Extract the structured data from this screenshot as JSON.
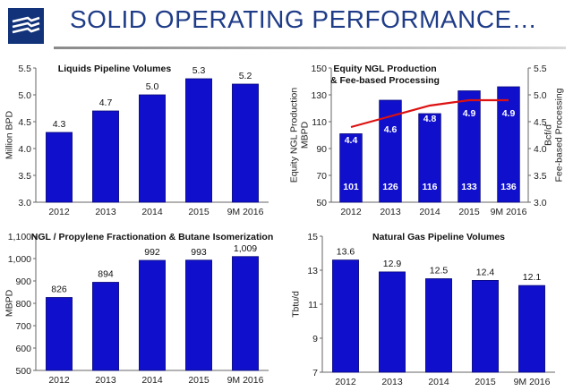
{
  "header": {
    "title": "SOLID OPERATING PERFORMANCE…"
  },
  "colors": {
    "bar": "#1010cc",
    "bar_edge": "#08087a",
    "line": "#dd1111",
    "title": "#1f3c88"
  },
  "chart_data": [
    {
      "type": "bar",
      "title": "Liquids Pipeline Volumes",
      "categories": [
        "2012",
        "2013",
        "2014",
        "2015",
        "9M 2016"
      ],
      "values": [
        4.3,
        4.7,
        5.0,
        5.3,
        5.2
      ],
      "value_labels": [
        "4.3",
        "4.7",
        "5.0",
        "5.3",
        "5.2"
      ],
      "ylabel": "Million BPD",
      "ylim": [
        3.0,
        5.5
      ],
      "yticks": [
        3.0,
        3.5,
        4.0,
        4.5,
        5.0,
        5.5
      ],
      "ytick_labels": [
        "3.0",
        "3.5",
        "4.0",
        "4.5",
        "5.0",
        "5.5"
      ]
    },
    {
      "type": "bar",
      "title": [
        "Equity NGL Production",
        "& Fee-based Processing"
      ],
      "categories": [
        "2012",
        "2013",
        "2014",
        "2015",
        "9M 2016"
      ],
      "series": [
        {
          "type": "bar",
          "values": [
            101,
            126,
            116,
            133,
            136
          ],
          "value_labels": [
            "101",
            "126",
            "116",
            "133",
            "136"
          ]
        },
        {
          "type": "line",
          "axis": "right",
          "values": [
            4.4,
            4.6,
            4.8,
            4.9,
            4.9
          ],
          "value_labels": [
            "4.4",
            "4.6",
            "4.8",
            "4.9",
            "4.9"
          ]
        }
      ],
      "ylabel": [
        "Equity NGL Production",
        "MBPD"
      ],
      "ylim": [
        50,
        150
      ],
      "yticks": [
        50,
        70,
        90,
        110,
        130,
        150
      ],
      "ytick_labels": [
        "50",
        "70",
        "90",
        "110",
        "130",
        "150"
      ],
      "y2label": [
        "Bcf/d",
        "Fee-based Processing"
      ],
      "y2lim": [
        3.0,
        5.5
      ],
      "y2ticks": [
        3.0,
        3.5,
        4.0,
        4.5,
        5.0,
        5.5
      ],
      "y2tick_labels": [
        "3.0",
        "3.5",
        "4.0",
        "4.5",
        "5.0",
        "5.5"
      ]
    },
    {
      "type": "bar",
      "title": "NGL / Propylene Fractionation & Butane Isomerization",
      "categories": [
        "2012",
        "2013",
        "2014",
        "2015",
        "9M 2016"
      ],
      "values": [
        826,
        894,
        992,
        993,
        1009
      ],
      "value_labels": [
        "826",
        "894",
        "992",
        "993",
        "1,009"
      ],
      "ylabel": "MBPD",
      "ylim": [
        500,
        1100
      ],
      "yticks": [
        500,
        600,
        700,
        800,
        900,
        1000,
        1100
      ],
      "ytick_labels": [
        "500",
        "600",
        "700",
        "800",
        "900",
        "1,000",
        "1,100"
      ]
    },
    {
      "type": "bar",
      "title": "Natural Gas Pipeline Volumes",
      "categories": [
        "2012",
        "2013",
        "2014",
        "2015",
        "9M 2016"
      ],
      "values": [
        13.6,
        12.9,
        12.5,
        12.4,
        12.1
      ],
      "value_labels": [
        "13.6",
        "12.9",
        "12.5",
        "12.4",
        "12.1"
      ],
      "ylabel": "Tbtu/d",
      "ylim": [
        7,
        15
      ],
      "yticks": [
        7,
        9,
        11,
        13,
        15
      ],
      "ytick_labels": [
        "7",
        "9",
        "11",
        "13",
        "15"
      ]
    }
  ]
}
